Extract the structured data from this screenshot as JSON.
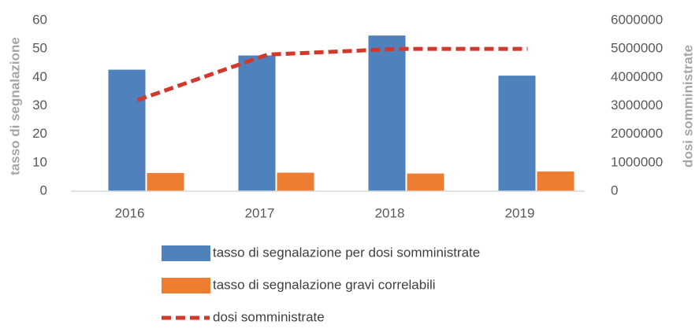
{
  "chart_data": {
    "type": "bar-line",
    "categories": [
      "2016",
      "2017",
      "2018",
      "2019"
    ],
    "series": [
      {
        "name": "tasso di segnalazione per dosi somministrate",
        "color": "#4f81bd",
        "type": "bar",
        "values": [
          42.7,
          47.7,
          54.7,
          40.6
        ]
      },
      {
        "name": "tasso di segnalazione gravi correlabili",
        "color": "#ed7d31",
        "type": "bar",
        "values": [
          6.4,
          6.5,
          6.2,
          6.9
        ]
      },
      {
        "name": "dosi somministrate",
        "color": "#d0392b",
        "type": "line",
        "axis": "y2",
        "values": [
          3200000,
          4800000,
          5000000,
          5000000
        ]
      }
    ],
    "ylabel": "tasso di segnalazione",
    "y2label": "dosi somministrate",
    "ylim": [
      0,
      60
    ],
    "yticks": [
      0,
      10,
      20,
      30,
      40,
      50,
      60
    ],
    "y2lim": [
      0,
      6000000
    ],
    "y2ticks": [
      0,
      1000000,
      2000000,
      3000000,
      4000000,
      5000000,
      6000000
    ],
    "grid": false,
    "legend": "bottom"
  }
}
